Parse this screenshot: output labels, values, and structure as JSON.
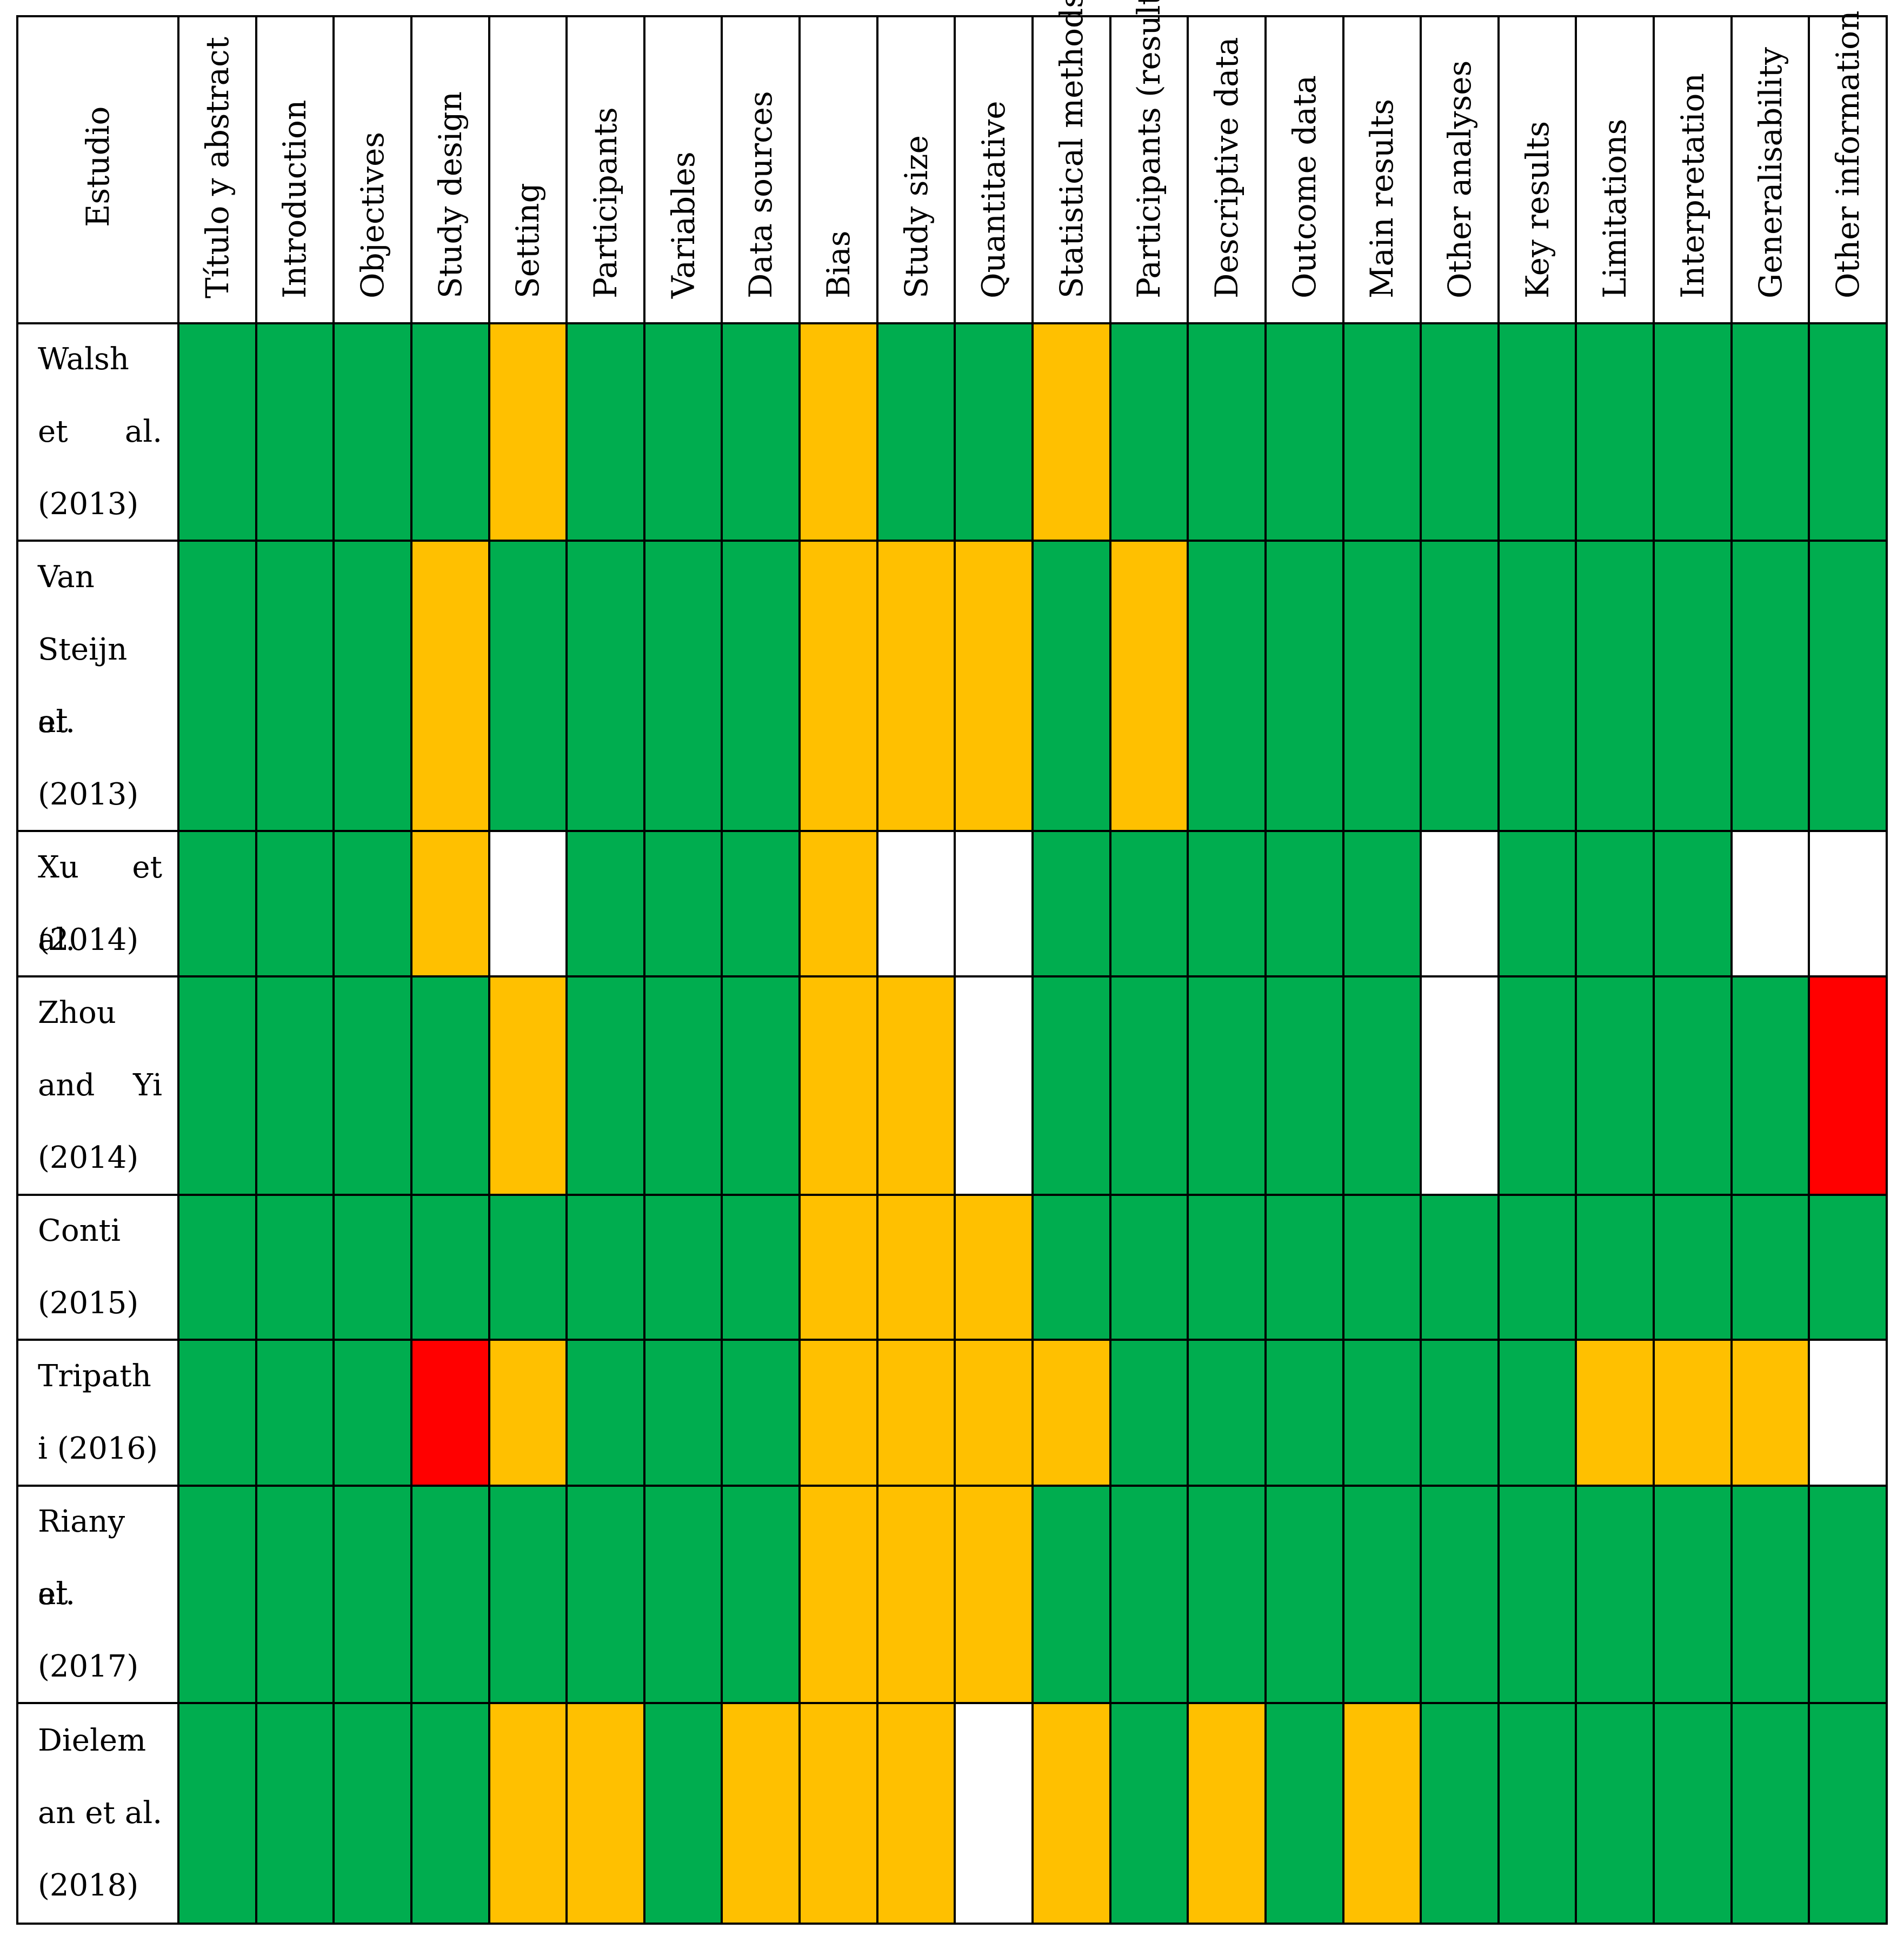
{
  "chart_data": {
    "type": "heatmap",
    "row_header": "Estudio",
    "columns": [
      "Título y abstract",
      "Introduction",
      "Objectives",
      "Study design",
      "Setting",
      "Participants",
      "Variables",
      "Data sources",
      "Bias",
      "Study size",
      "Quantitative",
      "Statistical methods",
      "Participants (results)",
      "Descriptive data",
      "Outcome data",
      "Main results",
      "Other analyses",
      "Key results",
      "Limitations",
      "Interpretation",
      "Generalisability",
      "Other information"
    ],
    "rows": [
      {
        "label_lines": [
          "Walsh",
          "et al.",
          "(2013)"
        ],
        "values": [
          "G",
          "G",
          "G",
          "G",
          "Y",
          "G",
          "G",
          "G",
          "Y",
          "G",
          "G",
          "Y",
          "G",
          "G",
          "G",
          "G",
          "G",
          "G",
          "G",
          "G",
          "G",
          "G"
        ]
      },
      {
        "label_lines": [
          "Van",
          "Steijn et",
          "al.",
          "(2013)"
        ],
        "values": [
          "G",
          "G",
          "G",
          "Y",
          "G",
          "G",
          "G",
          "G",
          "Y",
          "Y",
          "Y",
          "G",
          "Y",
          "G",
          "G",
          "G",
          "G",
          "G",
          "G",
          "G",
          "G",
          "G"
        ]
      },
      {
        "label_lines": [
          "Xu et al.",
          "(2014)"
        ],
        "values": [
          "G",
          "G",
          "G",
          "Y",
          "W",
          "G",
          "G",
          "G",
          "Y",
          "W",
          "W",
          "G",
          "G",
          "G",
          "G",
          "G",
          "W",
          "G",
          "G",
          "G",
          "W",
          "W"
        ]
      },
      {
        "label_lines": [
          "Zhou",
          "and Yi",
          "(2014)"
        ],
        "values": [
          "G",
          "G",
          "G",
          "G",
          "Y",
          "G",
          "G",
          "G",
          "Y",
          "Y",
          "W",
          "G",
          "G",
          "G",
          "G",
          "G",
          "W",
          "G",
          "G",
          "G",
          "G",
          "R"
        ]
      },
      {
        "label_lines": [
          "Conti",
          "(2015)"
        ],
        "values": [
          "G",
          "G",
          "G",
          "G",
          "G",
          "G",
          "G",
          "G",
          "Y",
          "Y",
          "Y",
          "G",
          "G",
          "G",
          "G",
          "G",
          "G",
          "G",
          "G",
          "G",
          "G",
          "G"
        ]
      },
      {
        "label_lines": [
          "Tripath",
          "i (2016)"
        ],
        "values": [
          "G",
          "G",
          "G",
          "R",
          "Y",
          "G",
          "G",
          "G",
          "Y",
          "Y",
          "Y",
          "Y",
          "G",
          "G",
          "G",
          "G",
          "G",
          "G",
          "Y",
          "Y",
          "Y",
          "W"
        ]
      },
      {
        "label_lines": [
          "Riany et",
          "al.",
          "(2017)"
        ],
        "values": [
          "G",
          "G",
          "G",
          "G",
          "G",
          "G",
          "G",
          "G",
          "Y",
          "Y",
          "Y",
          "G",
          "G",
          "G",
          "G",
          "G",
          "G",
          "G",
          "G",
          "G",
          "G",
          "G"
        ]
      },
      {
        "label_lines": [
          "Dielem",
          "an et al.",
          "(2018)"
        ],
        "values": [
          "G",
          "G",
          "G",
          "G",
          "Y",
          "Y",
          "G",
          "Y",
          "Y",
          "Y",
          "W",
          "Y",
          "G",
          "Y",
          "G",
          "Y",
          "G",
          "G",
          "G",
          "G",
          "G",
          "G"
        ]
      }
    ],
    "colors": {
      "G": "#00AD4F",
      "Y": "#FFC000",
      "R": "#FF0000",
      "W": "#FFFFFF"
    }
  }
}
